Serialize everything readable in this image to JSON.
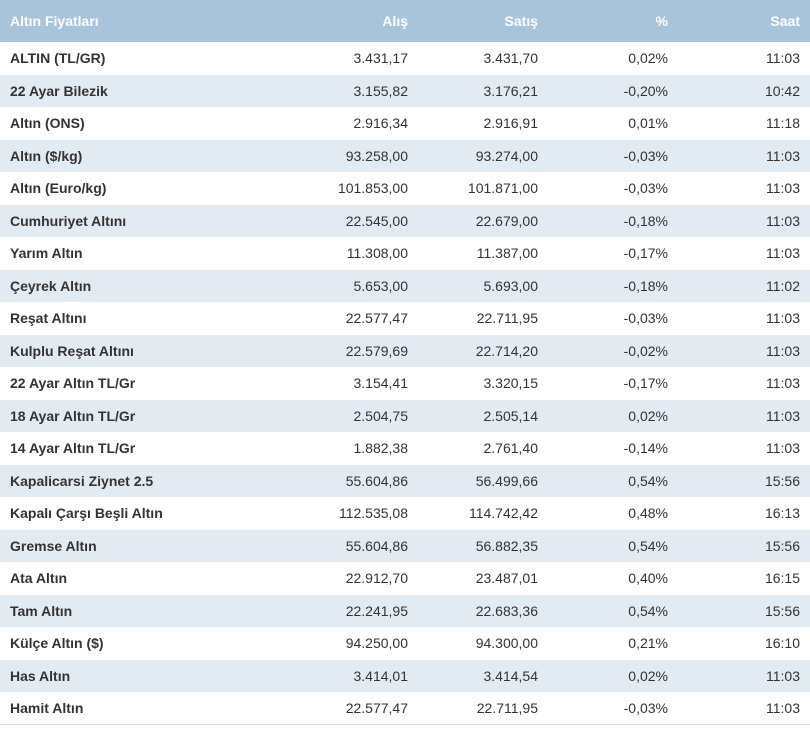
{
  "table": {
    "headers": [
      "Altın Fiyatları",
      "Alış",
      "Satış",
      "%",
      "Saat"
    ],
    "rows": [
      [
        "ALTIN (TL/GR)",
        "3.431,17",
        "3.431,70",
        "0,02%",
        "11:03"
      ],
      [
        "22 Ayar Bilezik",
        "3.155,82",
        "3.176,21",
        "-0,20%",
        "10:42"
      ],
      [
        "Altın (ONS)",
        "2.916,34",
        "2.916,91",
        "0,01%",
        "11:18"
      ],
      [
        "Altın ($/kg)",
        "93.258,00",
        "93.274,00",
        "-0,03%",
        "11:03"
      ],
      [
        "Altın (Euro/kg)",
        "101.853,00",
        "101.871,00",
        "-0,03%",
        "11:03"
      ],
      [
        "Cumhuriyet Altını",
        "22.545,00",
        "22.679,00",
        "-0,18%",
        "11:03"
      ],
      [
        "Yarım Altın",
        "11.308,00",
        "11.387,00",
        "-0,17%",
        "11:03"
      ],
      [
        "Çeyrek Altın",
        "5.653,00",
        "5.693,00",
        "-0,18%",
        "11:02"
      ],
      [
        "Reşat Altını",
        "22.577,47",
        "22.711,95",
        "-0,03%",
        "11:03"
      ],
      [
        "Kulplu Reşat Altını",
        "22.579,69",
        "22.714,20",
        "-0,02%",
        "11:03"
      ],
      [
        "22 Ayar Altın TL/Gr",
        "3.154,41",
        "3.320,15",
        "-0,17%",
        "11:03"
      ],
      [
        "18 Ayar Altın TL/Gr",
        "2.504,75",
        "2.505,14",
        "0,02%",
        "11:03"
      ],
      [
        "14 Ayar Altın TL/Gr",
        "1.882,38",
        "2.761,40",
        "-0,14%",
        "11:03"
      ],
      [
        "Kapalicarsi Ziynet 2.5",
        "55.604,86",
        "56.499,66",
        "0,54%",
        "15:56"
      ],
      [
        "Kapalı Çarşı Beşli Altın",
        "112.535,08",
        "114.742,42",
        "0,48%",
        "16:13"
      ],
      [
        "Gremse Altın",
        "55.604,86",
        "56.882,35",
        "0,54%",
        "15:56"
      ],
      [
        "Ata Altın",
        "22.912,70",
        "23.487,01",
        "0,40%",
        "16:15"
      ],
      [
        "Tam Altın",
        "22.241,95",
        "22.683,36",
        "0,54%",
        "15:56"
      ],
      [
        "Külçe Altın ($)",
        "94.250,00",
        "94.300,00",
        "0,21%",
        "16:10"
      ],
      [
        "Has Altın",
        "3.414,01",
        "3.414,54",
        "0,02%",
        "11:03"
      ],
      [
        "Hamit Altın",
        "22.577,47",
        "22.711,95",
        "-0,03%",
        "11:03"
      ]
    ]
  }
}
